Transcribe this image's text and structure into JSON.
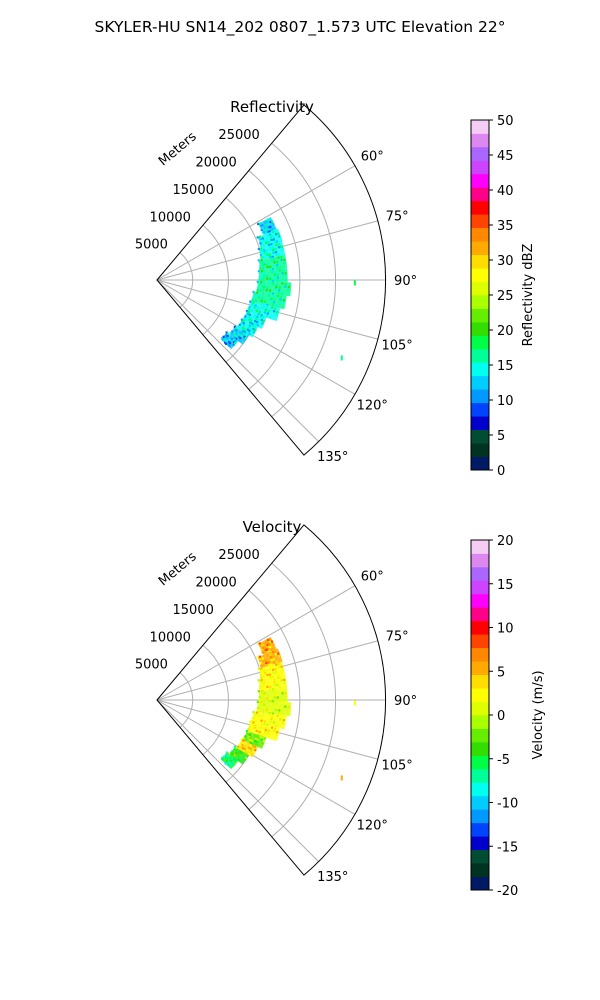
{
  "figure_title": "SKYLER-HU  SN14_202  0807_1.573 UTC Elevation 22°",
  "chart_data": [
    {
      "type": "polar-wedge",
      "title": "Reflectivity",
      "radial_label": "Meters",
      "r_ticks": [
        5000,
        10000,
        15000,
        20000,
        25000
      ],
      "r_range": [
        0,
        32000
      ],
      "theta_range_deg": [
        40,
        140
      ],
      "theta_ticks_deg": [
        60,
        75,
        90,
        105,
        120,
        135
      ],
      "theta_tick_labels": [
        "60°",
        "75°",
        "90°",
        "105°",
        "120°",
        "135°"
      ],
      "grid": true,
      "echo_band": [
        {
          "az": 64,
          "r": [
            16200,
            18200
          ],
          "value": 13
        },
        {
          "az": 70,
          "r": [
            15300,
            18400
          ],
          "value": 14
        },
        {
          "az": 76,
          "r": [
            14900,
            18300
          ],
          "value": 15
        },
        {
          "az": 82,
          "r": [
            14500,
            18300
          ],
          "value": 17
        },
        {
          "az": 88,
          "r": [
            14300,
            18300
          ],
          "value": 16
        },
        {
          "az": 94,
          "r": [
            14100,
            18800
          ],
          "value": 17
        },
        {
          "az": 100,
          "r": [
            13600,
            18300
          ],
          "value": 16
        },
        {
          "az": 106,
          "r": [
            13400,
            17700
          ],
          "value": 15
        },
        {
          "az": 112,
          "r": [
            13300,
            16200
          ],
          "value": 14
        },
        {
          "az": 118,
          "r": [
            13100,
            15600
          ],
          "value": 14
        },
        {
          "az": 124,
          "r": [
            12700,
            15000
          ],
          "value": 13
        },
        {
          "az": 130,
          "r": [
            12200,
            14200
          ],
          "value": 12
        }
      ],
      "isolated_echoes": [
        {
          "az": 91,
          "r": 27700,
          "value": 18
        },
        {
          "az": 113,
          "r": 28100,
          "value": 17
        }
      ],
      "colorbar": {
        "label": "Reflectivity dBZ",
        "min": 0,
        "max": 50,
        "ticks": [
          0,
          5,
          10,
          15,
          20,
          25,
          30,
          35,
          40,
          45,
          50
        ],
        "colors": [
          "#001a66",
          "#003322",
          "#004d33",
          "#0000cc",
          "#0044ff",
          "#0099ff",
          "#00ccff",
          "#00ffee",
          "#00ff99",
          "#00ff44",
          "#33dd00",
          "#66ee00",
          "#aaff00",
          "#ddff00",
          "#ffff00",
          "#ffdd00",
          "#ffaa00",
          "#ff8800",
          "#ff4400",
          "#ff0000",
          "#ff0088",
          "#ff00ff",
          "#cc44ff",
          "#aa66ff",
          "#dd88ee",
          "#f4ccf4"
        ]
      }
    },
    {
      "type": "polar-wedge",
      "title": "Velocity",
      "radial_label": "Meters",
      "r_ticks": [
        5000,
        10000,
        15000,
        20000,
        25000
      ],
      "r_range": [
        0,
        32000
      ],
      "theta_range_deg": [
        40,
        140
      ],
      "theta_ticks_deg": [
        60,
        75,
        90,
        105,
        120,
        135
      ],
      "theta_tick_labels": [
        "60°",
        "75°",
        "90°",
        "105°",
        "120°",
        "135°"
      ],
      "grid": true,
      "echo_band": [
        {
          "az": 64,
          "r": [
            16200,
            18200
          ],
          "value": 6
        },
        {
          "az": 70,
          "r": [
            15300,
            18400
          ],
          "value": 5
        },
        {
          "az": 76,
          "r": [
            14900,
            18300
          ],
          "value": 3
        },
        {
          "az": 82,
          "r": [
            14500,
            18300
          ],
          "value": 2
        },
        {
          "az": 88,
          "r": [
            14300,
            18300
          ],
          "value": 1
        },
        {
          "az": 94,
          "r": [
            14100,
            18800
          ],
          "value": 1
        },
        {
          "az": 100,
          "r": [
            13600,
            18300
          ],
          "value": 2
        },
        {
          "az": 106,
          "r": [
            13400,
            17700
          ],
          "value": 3
        },
        {
          "az": 112,
          "r": [
            13300,
            16200
          ],
          "value": -2
        },
        {
          "az": 118,
          "r": [
            13100,
            15600
          ],
          "value": 4
        },
        {
          "az": 124,
          "r": [
            12700,
            15000
          ],
          "value": -4
        },
        {
          "az": 130,
          "r": [
            12200,
            14200
          ],
          "value": -6
        }
      ],
      "isolated_echoes": [
        {
          "az": 91,
          "r": 27700,
          "value": 3
        },
        {
          "az": 113,
          "r": 28100,
          "value": 5
        }
      ],
      "colorbar": {
        "label": "Velocity (m/s)",
        "min": -20,
        "max": 20,
        "ticks": [
          -20,
          -15,
          -10,
          -5,
          0,
          5,
          10,
          15,
          20
        ],
        "colors": [
          "#001a66",
          "#003322",
          "#004d33",
          "#0000cc",
          "#0044ff",
          "#0099ff",
          "#00ccff",
          "#00ffee",
          "#00ff99",
          "#00ff44",
          "#33dd00",
          "#66ee00",
          "#aaff00",
          "#ddff00",
          "#ffff00",
          "#ffdd00",
          "#ffaa00",
          "#ff8800",
          "#ff4400",
          "#ff0000",
          "#ff0088",
          "#ff00ff",
          "#cc44ff",
          "#aa66ff",
          "#dd88ee",
          "#f4ccf4"
        ]
      }
    }
  ]
}
